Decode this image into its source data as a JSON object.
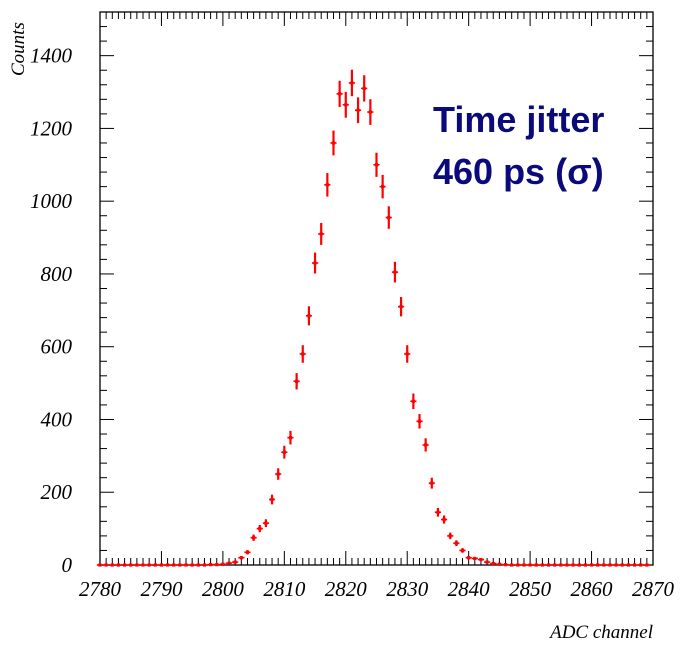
{
  "chart_data": {
    "type": "scatter",
    "xlabel": "ADC channel",
    "ylabel": "Counts",
    "xlim": [
      2780,
      2870
    ],
    "ylim": [
      0,
      1520
    ],
    "x_ticks": [
      2780,
      2790,
      2800,
      2810,
      2820,
      2830,
      2840,
      2850,
      2860,
      2870
    ],
    "y_ticks": [
      0,
      200,
      400,
      600,
      800,
      1000,
      1200,
      1400
    ],
    "annotation_line1": "Time jitter",
    "annotation_line2": "460 ps (σ)",
    "colors": {
      "data": "#ff0000",
      "annotation": "#0a0a7a",
      "axes": "#000000"
    },
    "points": [
      {
        "x": 2780,
        "y": 0
      },
      {
        "x": 2781,
        "y": 0
      },
      {
        "x": 2782,
        "y": 0
      },
      {
        "x": 2783,
        "y": 0
      },
      {
        "x": 2784,
        "y": 0
      },
      {
        "x": 2785,
        "y": 0
      },
      {
        "x": 2786,
        "y": 0
      },
      {
        "x": 2787,
        "y": 0
      },
      {
        "x": 2788,
        "y": 0
      },
      {
        "x": 2789,
        "y": 0
      },
      {
        "x": 2790,
        "y": 0
      },
      {
        "x": 2791,
        "y": 0
      },
      {
        "x": 2792,
        "y": 0
      },
      {
        "x": 2793,
        "y": 0
      },
      {
        "x": 2794,
        "y": 0
      },
      {
        "x": 2795,
        "y": 0
      },
      {
        "x": 2796,
        "y": 0
      },
      {
        "x": 2797,
        "y": 0
      },
      {
        "x": 2798,
        "y": 1
      },
      {
        "x": 2799,
        "y": 1
      },
      {
        "x": 2800,
        "y": 2
      },
      {
        "x": 2801,
        "y": 5
      },
      {
        "x": 2802,
        "y": 8
      },
      {
        "x": 2803,
        "y": 20
      },
      {
        "x": 2804,
        "y": 35
      },
      {
        "x": 2805,
        "y": 75
      },
      {
        "x": 2806,
        "y": 100
      },
      {
        "x": 2807,
        "y": 115
      },
      {
        "x": 2808,
        "y": 180
      },
      {
        "x": 2809,
        "y": 250
      },
      {
        "x": 2810,
        "y": 310
      },
      {
        "x": 2811,
        "y": 350
      },
      {
        "x": 2812,
        "y": 505
      },
      {
        "x": 2813,
        "y": 580
      },
      {
        "x": 2814,
        "y": 685
      },
      {
        "x": 2815,
        "y": 830
      },
      {
        "x": 2816,
        "y": 910
      },
      {
        "x": 2817,
        "y": 1045
      },
      {
        "x": 2818,
        "y": 1160
      },
      {
        "x": 2819,
        "y": 1295
      },
      {
        "x": 2820,
        "y": 1265
      },
      {
        "x": 2821,
        "y": 1325
      },
      {
        "x": 2822,
        "y": 1250
      },
      {
        "x": 2823,
        "y": 1310
      },
      {
        "x": 2824,
        "y": 1245
      },
      {
        "x": 2825,
        "y": 1100
      },
      {
        "x": 2826,
        "y": 1040
      },
      {
        "x": 2827,
        "y": 955
      },
      {
        "x": 2828,
        "y": 805
      },
      {
        "x": 2829,
        "y": 710
      },
      {
        "x": 2830,
        "y": 580
      },
      {
        "x": 2831,
        "y": 450
      },
      {
        "x": 2832,
        "y": 395
      },
      {
        "x": 2833,
        "y": 330
      },
      {
        "x": 2834,
        "y": 225
      },
      {
        "x": 2835,
        "y": 145
      },
      {
        "x": 2836,
        "y": 125
      },
      {
        "x": 2837,
        "y": 80
      },
      {
        "x": 2838,
        "y": 60
      },
      {
        "x": 2839,
        "y": 40
      },
      {
        "x": 2840,
        "y": 20
      },
      {
        "x": 2841,
        "y": 18
      },
      {
        "x": 2842,
        "y": 15
      },
      {
        "x": 2843,
        "y": 8
      },
      {
        "x": 2844,
        "y": 4
      },
      {
        "x": 2845,
        "y": 2
      },
      {
        "x": 2846,
        "y": 1
      },
      {
        "x": 2847,
        "y": 0
      },
      {
        "x": 2848,
        "y": 0
      },
      {
        "x": 2849,
        "y": 0
      },
      {
        "x": 2850,
        "y": 0
      },
      {
        "x": 2851,
        "y": 0
      },
      {
        "x": 2852,
        "y": 0
      },
      {
        "x": 2853,
        "y": 0
      },
      {
        "x": 2854,
        "y": 0
      },
      {
        "x": 2855,
        "y": 0
      },
      {
        "x": 2856,
        "y": 0
      },
      {
        "x": 2857,
        "y": 0
      },
      {
        "x": 2858,
        "y": 0
      },
      {
        "x": 2859,
        "y": 0
      },
      {
        "x": 2860,
        "y": 0
      },
      {
        "x": 2861,
        "y": 0
      },
      {
        "x": 2862,
        "y": 0
      },
      {
        "x": 2863,
        "y": 0
      },
      {
        "x": 2864,
        "y": 0
      },
      {
        "x": 2865,
        "y": 0
      },
      {
        "x": 2866,
        "y": 0
      },
      {
        "x": 2867,
        "y": 0
      },
      {
        "x": 2868,
        "y": 0
      },
      {
        "x": 2869,
        "y": 0
      }
    ]
  }
}
